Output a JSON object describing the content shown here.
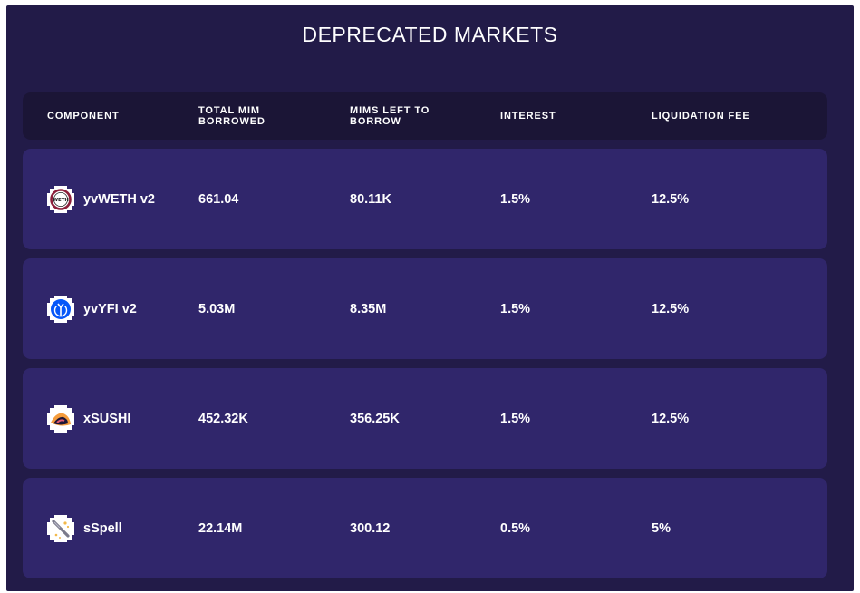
{
  "title": "DEPRECATED MARKETS",
  "columns": {
    "component": "COMPONENT",
    "total_borrowed": "TOTAL MIM BORROWED",
    "mims_left": "MIMS LEFT TO BORROW",
    "interest": "INTEREST",
    "liquidation_fee": "LIQUIDATION FEE"
  },
  "rows": [
    {
      "icon": "weth-token-icon",
      "icon_text": "WETH",
      "name": "yvWETH v2",
      "total_borrowed": "661.04",
      "mims_left": "80.11K",
      "interest": "1.5%",
      "liquidation_fee": "12.5%"
    },
    {
      "icon": "yfi-token-icon",
      "name": "yvYFI v2",
      "total_borrowed": "5.03M",
      "mims_left": "8.35M",
      "interest": "1.5%",
      "liquidation_fee": "12.5%"
    },
    {
      "icon": "sushi-token-icon",
      "name": "xSUSHI",
      "total_borrowed": "452.32K",
      "mims_left": "356.25K",
      "interest": "1.5%",
      "liquidation_fee": "12.5%"
    },
    {
      "icon": "spell-token-icon",
      "name": "sSpell",
      "total_borrowed": "22.14M",
      "mims_left": "300.12",
      "interest": "0.5%",
      "liquidation_fee": "5%"
    }
  ],
  "colors": {
    "background": "#221b48",
    "header_row": "#1b1536",
    "market_row": "#30266b",
    "text": "#ffffff"
  }
}
